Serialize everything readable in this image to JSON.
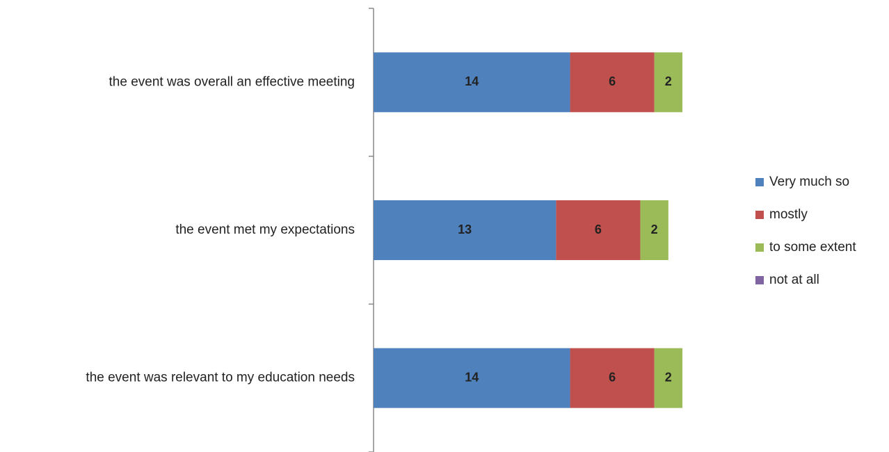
{
  "chart_data": {
    "type": "stacked-bar-horizontal",
    "categories": [
      "the event was overall an effective meeting",
      "the event met my expectations",
      "the event was relevant to my education needs"
    ],
    "series": [
      {
        "name": "Very much so",
        "color": "#4f81bd",
        "values": [
          14,
          13,
          14
        ]
      },
      {
        "name": "mostly",
        "color": "#c0504d",
        "values": [
          6,
          6,
          6
        ]
      },
      {
        "name": "to some extent",
        "color": "#9bbb59",
        "values": [
          2,
          2,
          2
        ]
      },
      {
        "name": "not at all",
        "color": "#8064a2",
        "values": [
          0,
          0,
          0
        ]
      }
    ],
    "legend": "right"
  }
}
